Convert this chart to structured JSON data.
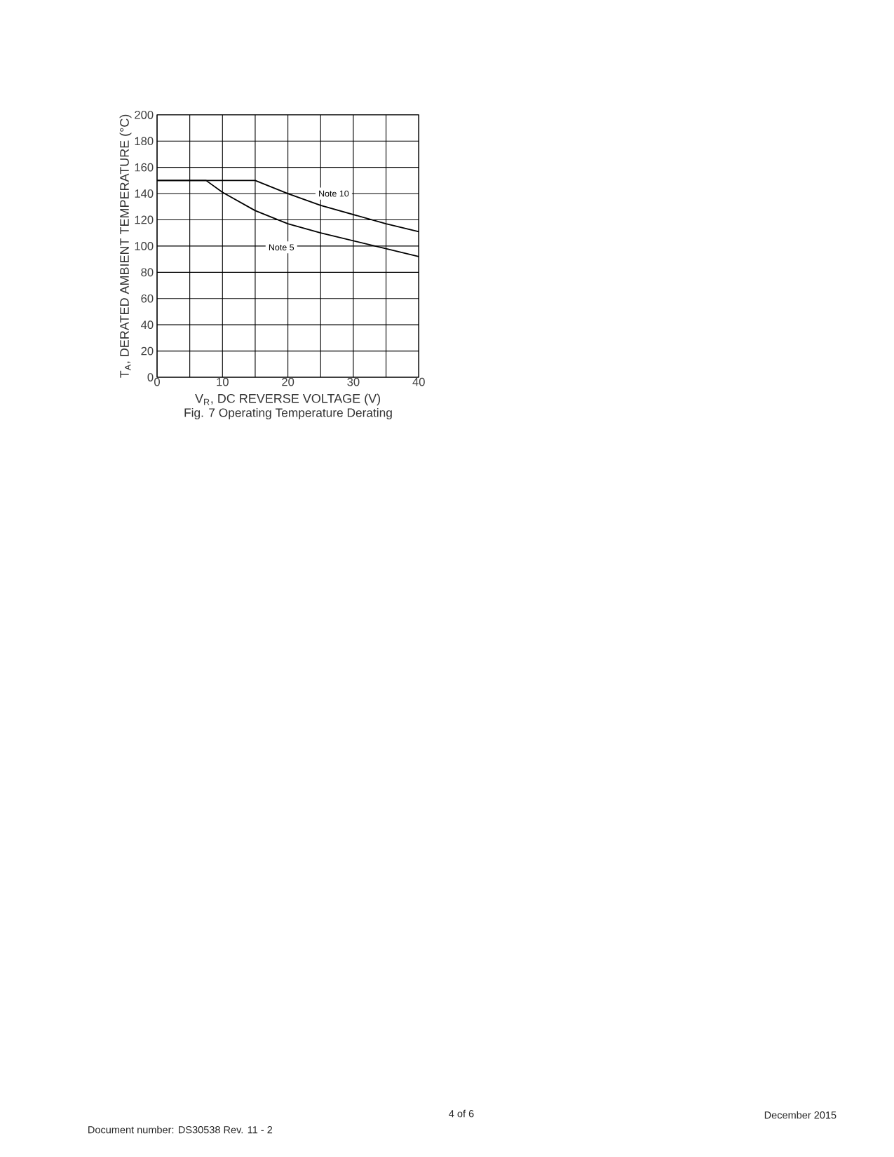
{
  "chart_data": {
    "type": "line",
    "title": "Fig. 7  Operating Temperature Derating",
    "xlabel": "V$_{R}$, DC REVERSE VOLTAGE (V)",
    "ylabel": "T$_{A}$, DERATED AMBIENT TEMPERATURE (°C)",
    "series": [
      {
        "name": "Note 10",
        "color": "#000000",
        "x": [
          0,
          15,
          20,
          25,
          30,
          35,
          40
        ],
        "values": [
          150,
          150,
          140,
          131,
          124,
          117,
          111
        ]
      },
      {
        "name": "Note 5",
        "color": "#000000",
        "x": [
          0,
          7.5,
          10,
          15,
          20,
          25,
          30,
          35,
          40
        ],
        "values": [
          150,
          150,
          141,
          127,
          117,
          110,
          104,
          98,
          92
        ]
      }
    ],
    "xlim": [
      0,
      40
    ],
    "ylim": [
      0,
      200
    ],
    "xticks": [
      0,
      {
        "value": 5,
        "label": null
      },
      10,
      {
        "value": 15,
        "label": null
      },
      20,
      {
        "value": 25,
        "label": null
      },
      30,
      {
        "value": 35,
        "label": null
      },
      40
    ],
    "yticks": [
      0,
      20,
      40,
      60,
      80,
      100,
      120,
      140,
      160,
      180,
      200
    ],
    "grid": true,
    "annotations": [
      "Document number: DS30538 Rev. 11 - 2",
      "4 of 6",
      "December 2015"
    ]
  }
}
